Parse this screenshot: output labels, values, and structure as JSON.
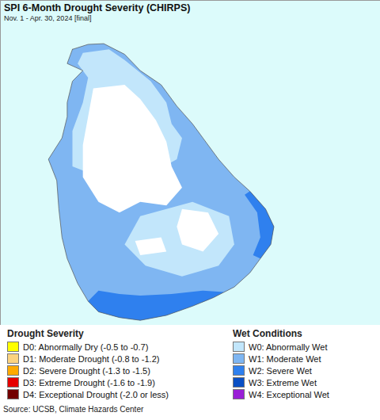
{
  "chart_data": {
    "type": "map",
    "title": "SPI 6-Month Drought Severity (CHIRPS)",
    "subtitle": "Nov. 1 - Apr. 30, 2024 [final]",
    "xlim": [
      79.26,
      82.9
    ],
    "ylim": [
      5.86,
      10.44
    ],
    "tick_labels": false,
    "legend_groups": [
      {
        "title": "Drought Severity",
        "items": [
          {
            "label": "D0: Abnormally Dry (-0.5 to -0.7)",
            "color": "#ffff00"
          },
          {
            "label": "D1: Moderate Drought (-0.8 to -1.2)",
            "color": "#fcd37f"
          },
          {
            "label": "D2: Severe Drought (-1.3 to -1.5)",
            "color": "#ffaa00"
          },
          {
            "label": "D3: Extreme Drought (-1.6 to -1.9)",
            "color": "#e60000"
          },
          {
            "label": "D4: Exceptional Drought (-2.0 or less)",
            "color": "#730000"
          }
        ]
      },
      {
        "title": "Wet Conditions",
        "items": [
          {
            "label": "W0: Abnormally Wet",
            "color": "#c2e6fb"
          },
          {
            "label": "W1: Moderate Wet",
            "color": "#7fb6f2"
          },
          {
            "label": "W2: Severe Wet",
            "color": "#2f80ee"
          },
          {
            "label": "W3: Extreme Wet",
            "color": "#0a4fc4"
          },
          {
            "label": "W4: Exceptional Wet",
            "color": "#9a1fd6"
          }
        ]
      }
    ],
    "regions": [
      {
        "category": "W1",
        "polygon": [
          [
            79.95,
            9.75
          ],
          [
            80.1,
            9.82
          ],
          [
            80.25,
            9.83
          ],
          [
            80.45,
            9.68
          ],
          [
            80.6,
            9.45
          ],
          [
            80.8,
            9.25
          ],
          [
            80.95,
            8.95
          ],
          [
            81.1,
            8.7
          ],
          [
            81.2,
            8.5
          ],
          [
            81.35,
            8.2
          ],
          [
            81.5,
            7.95
          ],
          [
            81.65,
            7.75
          ],
          [
            81.8,
            7.5
          ],
          [
            81.88,
            7.25
          ],
          [
            81.85,
            7.0
          ],
          [
            81.75,
            6.8
          ],
          [
            81.65,
            6.6
          ],
          [
            81.5,
            6.4
          ],
          [
            81.3,
            6.25
          ],
          [
            81.1,
            6.13
          ],
          [
            80.85,
            6.0
          ],
          [
            80.6,
            5.93
          ],
          [
            80.4,
            5.97
          ],
          [
            80.2,
            6.05
          ],
          [
            80.1,
            6.2
          ],
          [
            80.0,
            6.45
          ],
          [
            79.9,
            6.8
          ],
          [
            79.85,
            7.1
          ],
          [
            79.82,
            7.5
          ],
          [
            79.8,
            7.9
          ],
          [
            79.72,
            8.2
          ],
          [
            79.85,
            8.5
          ],
          [
            79.9,
            8.8
          ],
          [
            79.9,
            9.0
          ],
          [
            79.95,
            9.3
          ],
          [
            80.05,
            9.45
          ],
          [
            79.9,
            9.55
          ]
        ]
      },
      {
        "category": "W0",
        "polygon": [
          [
            80.05,
            9.7
          ],
          [
            80.3,
            9.75
          ],
          [
            80.45,
            9.6
          ],
          [
            80.7,
            9.3
          ],
          [
            80.85,
            9.0
          ],
          [
            80.9,
            8.7
          ],
          [
            81.0,
            8.5
          ],
          [
            80.95,
            8.2
          ],
          [
            80.7,
            8.0
          ],
          [
            80.3,
            7.9
          ],
          [
            79.95,
            8.1
          ],
          [
            79.95,
            8.6
          ],
          [
            80.05,
            9.0
          ],
          [
            80.1,
            9.35
          ],
          [
            80.0,
            9.55
          ]
        ]
      },
      {
        "category": "W0",
        "polygon": [
          [
            80.6,
            7.4
          ],
          [
            81.1,
            7.6
          ],
          [
            81.45,
            7.4
          ],
          [
            81.5,
            7.0
          ],
          [
            81.35,
            6.7
          ],
          [
            81.0,
            6.55
          ],
          [
            80.65,
            6.7
          ],
          [
            80.45,
            7.0
          ]
        ]
      },
      {
        "category": null,
        "polygon": [
          [
            80.15,
            9.2
          ],
          [
            80.45,
            9.25
          ],
          [
            80.6,
            9.05
          ],
          [
            80.75,
            8.75
          ],
          [
            80.85,
            8.45
          ],
          [
            80.9,
            8.1
          ],
          [
            81.0,
            7.8
          ],
          [
            80.85,
            7.55
          ],
          [
            80.6,
            7.6
          ],
          [
            80.4,
            7.45
          ],
          [
            80.2,
            7.6
          ],
          [
            80.05,
            7.95
          ],
          [
            80.05,
            8.4
          ],
          [
            80.1,
            8.8
          ]
        ]
      },
      {
        "category": null,
        "polygon": [
          [
            81.0,
            7.5
          ],
          [
            81.25,
            7.45
          ],
          [
            81.35,
            7.15
          ],
          [
            81.2,
            6.9
          ],
          [
            81.0,
            7.0
          ],
          [
            80.95,
            7.25
          ]
        ]
      },
      {
        "category": null,
        "polygon": [
          [
            80.55,
            7.05
          ],
          [
            80.8,
            7.1
          ],
          [
            80.85,
            6.9
          ],
          [
            80.6,
            6.85
          ]
        ]
      },
      {
        "category": "W2",
        "polygon": [
          [
            80.1,
            6.2
          ],
          [
            80.2,
            6.05
          ],
          [
            80.4,
            5.97
          ],
          [
            80.6,
            5.93
          ],
          [
            80.85,
            6.0
          ],
          [
            81.1,
            6.13
          ],
          [
            81.3,
            6.25
          ],
          [
            81.4,
            6.33
          ],
          [
            81.2,
            6.35
          ],
          [
            80.9,
            6.3
          ],
          [
            80.6,
            6.28
          ],
          [
            80.4,
            6.3
          ],
          [
            80.2,
            6.35
          ]
        ]
      },
      {
        "category": "W2",
        "polygon": [
          [
            81.65,
            7.75
          ],
          [
            81.8,
            7.5
          ],
          [
            81.88,
            7.25
          ],
          [
            81.85,
            7.0
          ],
          [
            81.75,
            6.8
          ],
          [
            81.68,
            6.85
          ],
          [
            81.75,
            7.1
          ],
          [
            81.72,
            7.45
          ],
          [
            81.6,
            7.7
          ]
        ]
      }
    ],
    "source": "Source: UCSB, Climate Hazards Center"
  }
}
